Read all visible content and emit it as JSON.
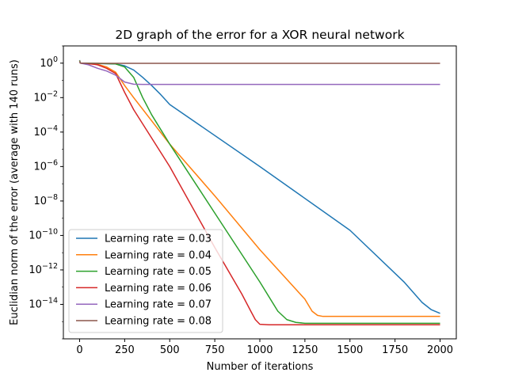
{
  "chart_data": {
    "type": "line",
    "title": "2D graph of the error for a XOR neural network",
    "xlabel": "Number of iterations",
    "ylabel": "Euclidian norm of the error (average with 140 runs)",
    "xlim": [
      -90,
      2090
    ],
    "ylim": [
      1e-16,
      10
    ],
    "yscale": "log",
    "xticks": [
      0,
      250,
      500,
      750,
      1000,
      1250,
      1500,
      1750,
      2000
    ],
    "xtick_labels": [
      "0",
      "250",
      "500",
      "750",
      "1000",
      "1250",
      "1500",
      "1750",
      "2000"
    ],
    "yticks": [
      1,
      0.01,
      0.0001,
      1e-06,
      1e-08,
      1e-10,
      1e-12,
      1e-14
    ],
    "ytick_labels": [
      {
        "base": "10",
        "exp": "0"
      },
      {
        "base": "10",
        "exp": "−2"
      },
      {
        "base": "10",
        "exp": "−4"
      },
      {
        "base": "10",
        "exp": "−6"
      },
      {
        "base": "10",
        "exp": "−8"
      },
      {
        "base": "10",
        "exp": "−10"
      },
      {
        "base": "10",
        "exp": "−12"
      },
      {
        "base": "10",
        "exp": "−14"
      }
    ],
    "grid": false,
    "legend": "lower-left",
    "series": [
      {
        "name": "Learning rate = 0.03",
        "color": "#1f77b4",
        "points": [
          [
            0,
            1.5
          ],
          [
            5,
            1.0
          ],
          [
            50,
            0.95
          ],
          [
            150,
            0.93
          ],
          [
            200,
            0.9
          ],
          [
            250,
            0.7
          ],
          [
            300,
            0.4
          ],
          [
            350,
            0.15
          ],
          [
            400,
            0.05
          ],
          [
            450,
            0.015
          ],
          [
            500,
            0.004
          ],
          [
            1000,
            1e-06
          ],
          [
            1500,
            2e-10
          ],
          [
            1800,
            2e-13
          ],
          [
            1900,
            1.3e-14
          ],
          [
            1950,
            5e-15
          ],
          [
            2000,
            3e-15
          ]
        ]
      },
      {
        "name": "Learning rate = 0.04",
        "color": "#ff7f0e",
        "points": [
          [
            0,
            1.4
          ],
          [
            5,
            1.0
          ],
          [
            50,
            0.9
          ],
          [
            100,
            0.85
          ],
          [
            150,
            0.6
          ],
          [
            200,
            0.3
          ],
          [
            250,
            0.05
          ],
          [
            300,
            0.01
          ],
          [
            500,
            2e-05
          ],
          [
            750,
            2e-08
          ],
          [
            1000,
            1.5e-11
          ],
          [
            1250,
            2e-14
          ],
          [
            1290,
            4e-15
          ],
          [
            1320,
            2.3e-15
          ],
          [
            1350,
            2e-15
          ],
          [
            2000,
            2e-15
          ]
        ]
      },
      {
        "name": "Learning rate = 0.05",
        "color": "#2ca02c",
        "points": [
          [
            0,
            1.3
          ],
          [
            5,
            1.0
          ],
          [
            100,
            0.97
          ],
          [
            200,
            0.9
          ],
          [
            250,
            0.6
          ],
          [
            300,
            0.15
          ],
          [
            350,
            0.01
          ],
          [
            400,
            0.001
          ],
          [
            500,
            2e-05
          ],
          [
            750,
            2e-09
          ],
          [
            1000,
            2e-13
          ],
          [
            1100,
            4e-15
          ],
          [
            1150,
            1.3e-15
          ],
          [
            1200,
            9e-16
          ],
          [
            1250,
            8e-16
          ],
          [
            2000,
            8e-16
          ]
        ]
      },
      {
        "name": "Learning rate = 0.06",
        "color": "#d62728",
        "points": [
          [
            0,
            1.2
          ],
          [
            5,
            1.0
          ],
          [
            50,
            0.95
          ],
          [
            100,
            0.8
          ],
          [
            150,
            0.5
          ],
          [
            200,
            0.25
          ],
          [
            250,
            0.02
          ],
          [
            300,
            0.002
          ],
          [
            500,
            1e-06
          ],
          [
            750,
            2e-11
          ],
          [
            900,
            4e-14
          ],
          [
            950,
            4e-15
          ],
          [
            975,
            1.3e-15
          ],
          [
            1000,
            7e-16
          ],
          [
            1050,
            6.5e-16
          ],
          [
            2000,
            6.5e-16
          ]
        ]
      },
      {
        "name": "Learning rate = 0.07",
        "color": "#9467bd",
        "points": [
          [
            0,
            1.2
          ],
          [
            5,
            1.0
          ],
          [
            50,
            0.8
          ],
          [
            100,
            0.5
          ],
          [
            150,
            0.35
          ],
          [
            200,
            0.2
          ],
          [
            250,
            0.08
          ],
          [
            300,
            0.06
          ],
          [
            350,
            0.058
          ],
          [
            2000,
            0.058
          ]
        ]
      },
      {
        "name": "Learning rate = 0.08",
        "color": "#8c564b",
        "points": [
          [
            0,
            1.1
          ],
          [
            5,
            1.0
          ],
          [
            50,
            0.98
          ],
          [
            100,
            0.97
          ],
          [
            200,
            0.97
          ],
          [
            2000,
            0.97
          ]
        ]
      }
    ]
  }
}
